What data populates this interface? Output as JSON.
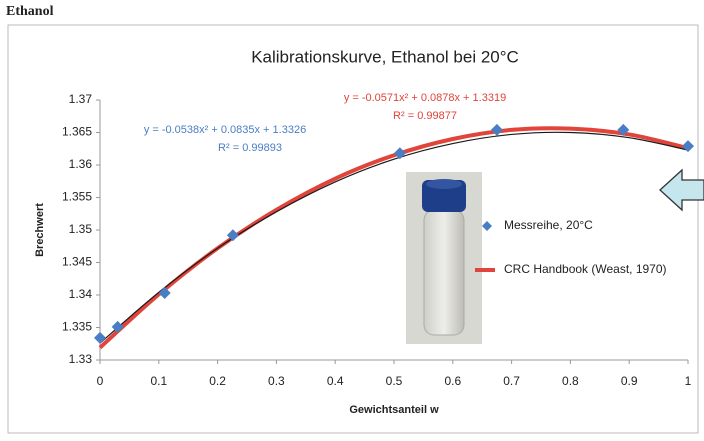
{
  "heading": "Ethanol",
  "chart_data": {
    "type": "scatter",
    "title": "Kalibrationskurve, Ethanol bei 20°C",
    "x_label": "Gewichtsanteil w",
    "y_label": "Brechwert",
    "xlim": [
      0,
      1
    ],
    "xticks": [
      0,
      0.1,
      0.2,
      0.3,
      0.4,
      0.5,
      0.6,
      0.7,
      0.8,
      0.9,
      1
    ],
    "ylim": [
      1.33,
      1.37
    ],
    "yticks": [
      1.33,
      1.335,
      1.34,
      1.345,
      1.35,
      1.355,
      1.36,
      1.365,
      1.37
    ],
    "grid": false,
    "legend": "right",
    "series": [
      {
        "name": "Messreihe, 20°C",
        "color": "#4a7ec4",
        "kind": "markers",
        "x": [
          0,
          0.03,
          0.11,
          0.226,
          0.51,
          0.675,
          0.89,
          1
        ],
        "values": [
          1.3334,
          1.3351,
          1.3403,
          1.3492,
          1.3618,
          1.3654,
          1.3654,
          1.3629
        ]
      },
      {
        "name": "CRC Handbook (Weast, 1970)",
        "color": "#e0443a",
        "kind": "line",
        "x": [
          0,
          0.1,
          0.2,
          0.3,
          0.4,
          0.5,
          0.6,
          0.7,
          0.8,
          0.9,
          1
        ],
        "values": [
          1.3319,
          1.3401,
          1.3472,
          1.3531,
          1.3579,
          1.3615,
          1.364,
          1.3654,
          1.3656,
          1.3647,
          1.3626
        ]
      }
    ],
    "trendline": {
      "color": "#1a1a1a",
      "x": [
        0,
        0.1,
        0.2,
        0.3,
        0.4,
        0.5,
        0.6,
        0.7,
        0.8,
        0.9,
        1
      ],
      "values": [
        1.3326,
        1.3404,
        1.3472,
        1.3528,
        1.3574,
        1.3609,
        1.3633,
        1.3647,
        1.365,
        1.3642,
        1.3623
      ]
    },
    "annotations": [
      {
        "text": "y = -0.0538x² + 0.0835x + 1.3326",
        "color": "#4a7ec4"
      },
      {
        "text": "R² = 0.99893",
        "color": "#4a7ec4"
      },
      {
        "text": "y = -0.0571x² + 0.0878x + 1.3319",
        "color": "#e0443a"
      },
      {
        "text": "R² = 0.99877",
        "color": "#e0443a"
      }
    ]
  }
}
